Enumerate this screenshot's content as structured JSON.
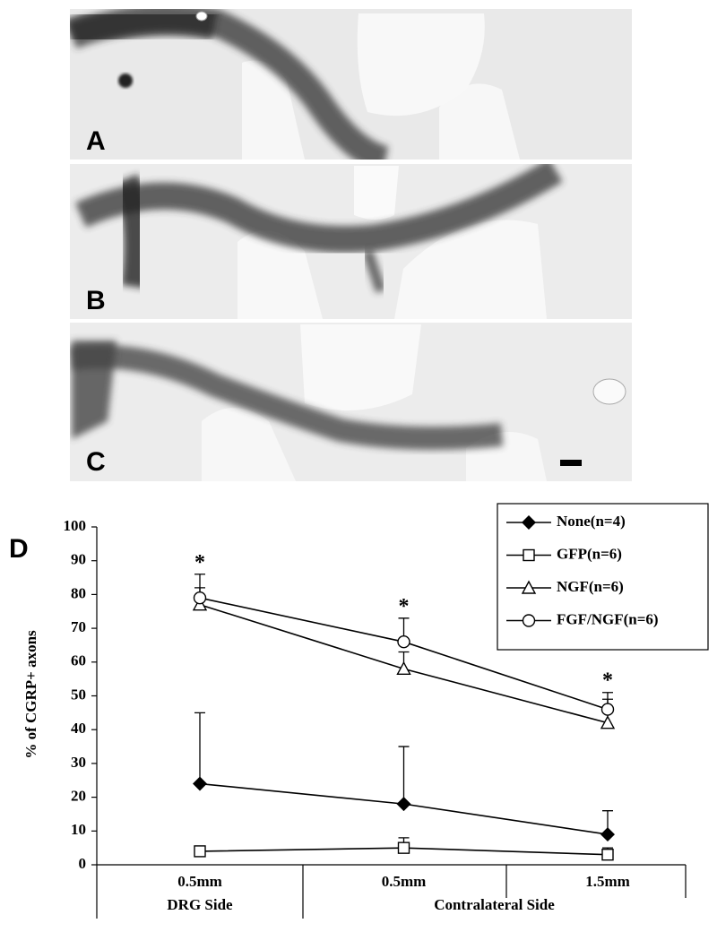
{
  "panels": [
    "A",
    "B",
    "C"
  ],
  "chart_data": {
    "type": "line",
    "panel_label": "D",
    "ylabel": "% of CGRP+ axons",
    "categories": [
      "0.5mm",
      "0.5mm",
      "1.5mm"
    ],
    "group_labels": [
      "DRG Side",
      "Contralateral Side"
    ],
    "significance": [
      "*",
      "*",
      "*"
    ],
    "ylim": [
      0,
      100
    ],
    "yticks": [
      0,
      10,
      20,
      30,
      40,
      50,
      60,
      70,
      80,
      90,
      100
    ],
    "grid": false,
    "legend": "upper right",
    "series": [
      {
        "name": "None(n=4)",
        "marker": "diamond",
        "filled": true,
        "color": "#000000",
        "values": [
          24,
          18,
          9
        ],
        "errors": [
          21,
          17,
          7
        ]
      },
      {
        "name": "GFP(n=6)",
        "marker": "square",
        "filled": false,
        "color": "#000000",
        "values": [
          4,
          5,
          3
        ],
        "errors": [
          0,
          3,
          2
        ]
      },
      {
        "name": "NGF(n=6)",
        "marker": "triangle",
        "filled": false,
        "color": "#000000",
        "values": [
          77,
          58,
          42
        ],
        "errors": [
          5,
          5,
          7
        ]
      },
      {
        "name": "FGF/NGF(n=6)",
        "marker": "circle",
        "filled": false,
        "color": "#000000",
        "values": [
          79,
          66,
          46
        ],
        "errors": [
          7,
          7,
          5
        ]
      }
    ]
  }
}
